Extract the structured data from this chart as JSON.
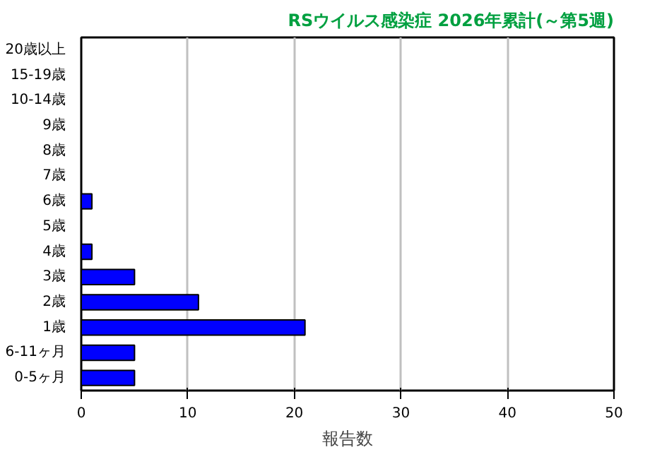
{
  "chart_data": {
    "type": "bar",
    "orientation": "horizontal",
    "title": "RSウイルス感染症 2026年累計(～第5週)",
    "xlabel": "報告数",
    "categories": [
      "20歳以上",
      "15-19歳",
      "10-14歳",
      "9歳",
      "8歳",
      "7歳",
      "6歳",
      "5歳",
      "4歳",
      "3歳",
      "2歳",
      "1歳",
      "6-11ヶ月",
      "0-5ヶ月"
    ],
    "values": [
      0,
      0,
      0,
      0,
      0,
      0,
      1,
      0,
      1,
      5,
      11,
      21,
      5,
      5
    ],
    "color": "#0000ff",
    "xlim": [
      0,
      50
    ],
    "xticks": [
      0,
      10,
      20,
      30,
      40,
      50
    ],
    "grid": "x"
  }
}
